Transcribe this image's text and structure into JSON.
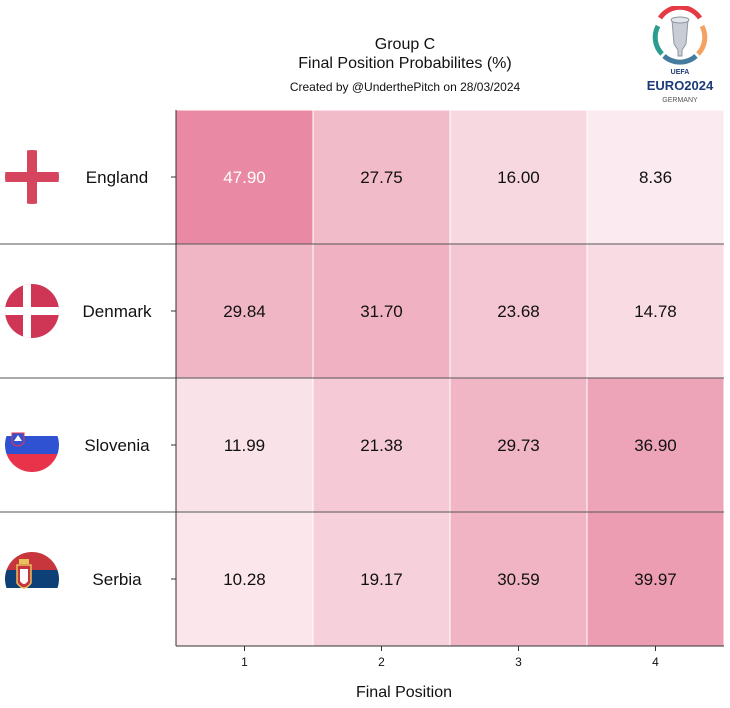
{
  "chart_data": {
    "type": "heatmap",
    "title": "Group C",
    "subtitle": "Final Position Probabilites (%)",
    "credit": "Created by @UnderthePitch on 28/03/2024",
    "xlabel": "Final Position",
    "x": [
      "1",
      "2",
      "3",
      "4"
    ],
    "rows": [
      {
        "team": "England",
        "flag": "england-flag",
        "values": [
          47.9,
          27.75,
          16.0,
          8.36
        ]
      },
      {
        "team": "Denmark",
        "flag": "denmark-flag",
        "values": [
          29.84,
          31.7,
          23.68,
          14.78
        ]
      },
      {
        "team": "Slovenia",
        "flag": "slovenia-flag",
        "values": [
          11.99,
          21.38,
          29.73,
          36.9
        ]
      },
      {
        "team": "Serbia",
        "flag": "serbia-flag",
        "values": [
          10.28,
          19.17,
          30.59,
          39.97
        ]
      }
    ],
    "value_range": [
      0,
      50
    ],
    "colormap_high": "#e8849f",
    "colormap_low": "#ffffff"
  },
  "logo": {
    "uefa": "UEFA",
    "euro": "EURO2024",
    "country": "GERMANY"
  }
}
